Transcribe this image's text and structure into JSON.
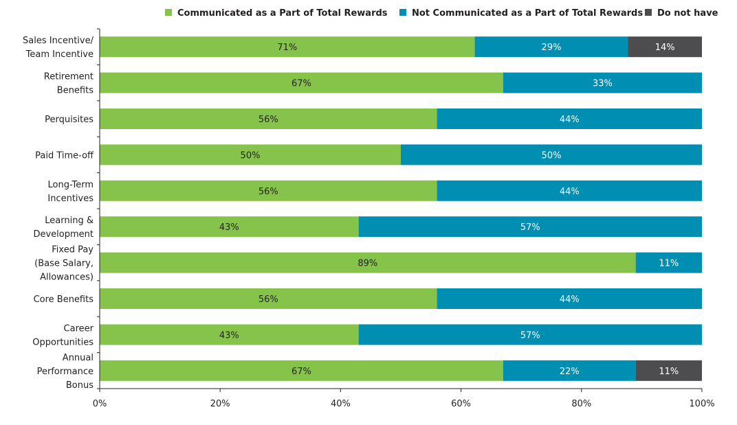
{
  "chart_data": {
    "type": "bar",
    "orientation": "horizontal",
    "stacked": "percent",
    "title": "",
    "xlabel": "",
    "ylabel": "",
    "xlim": [
      0,
      100
    ],
    "x_ticks": [
      "0%",
      "20%",
      "40%",
      "60%",
      "80%",
      "100%"
    ],
    "grid": false,
    "legend_position": "top-right",
    "categories": [
      "Sales Incentive/ Team Incentive",
      "Retirement Benefits",
      "Perquisites",
      "Paid Time-off",
      "Long-Term Incentives",
      "Learning & Development",
      "Fixed Pay (Base Salary, Allowances)",
      "Core Benefits",
      "Career Opportunities",
      "Annual Performance Bonus"
    ],
    "category_lines": [
      [
        "Sales Incentive/",
        "Team Incentive"
      ],
      [
        "Retirement",
        "Benefits"
      ],
      [
        "Perquisites"
      ],
      [
        "Paid Time-off"
      ],
      [
        "Long-Term",
        "Incentives"
      ],
      [
        "Learning &",
        "Development"
      ],
      [
        "Fixed Pay",
        "(Base Salary,",
        "Allowances)"
      ],
      [
        "Core Benefits"
      ],
      [
        "Career",
        "Opportunities"
      ],
      [
        "Annual",
        "Performance",
        "Bonus"
      ]
    ],
    "series": [
      {
        "name": "Communicated as a Part of Total Rewards",
        "color": "#86c34a",
        "label_color": "#231f20",
        "values": [
          71,
          67,
          56,
          50,
          56,
          43,
          89,
          56,
          43,
          67
        ]
      },
      {
        "name": "Not Communicated as a Part of Total Rewards",
        "color": "#008fb3",
        "label_color": "#ffffff",
        "values": [
          29,
          33,
          44,
          50,
          44,
          57,
          11,
          44,
          57,
          22
        ]
      },
      {
        "name": "Do not have",
        "color": "#4d4d4f",
        "label_color": "#ffffff",
        "values": [
          14,
          0,
          0,
          0,
          0,
          0,
          0,
          0,
          0,
          11
        ]
      }
    ]
  }
}
